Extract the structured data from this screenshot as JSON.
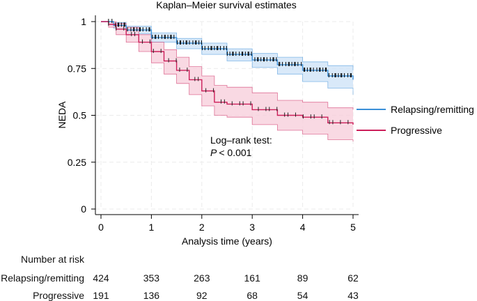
{
  "chart_data": {
    "type": "line",
    "title": "Kaplan–Meier survival estimates",
    "xlabel": "Analysis time (years)",
    "ylabel": "NEDA",
    "xlim": [
      0,
      5
    ],
    "ylim": [
      0,
      1
    ],
    "x_ticks": [
      "0",
      "1",
      "2",
      "3",
      "4",
      "5"
    ],
    "y_ticks": [
      "0",
      "0.25",
      "0.5",
      "0.75",
      "1"
    ],
    "grid": true,
    "legend_position": "right",
    "annotation": {
      "line1": "Log–rank test:",
      "p_label": "P",
      "p_value": "< 0.001"
    },
    "series": [
      {
        "name": "Relapsing/remitting",
        "color": "#3a8fd8",
        "band_color": "#cfe3f7",
        "x": [
          0,
          0.25,
          0.5,
          1,
          1.5,
          2,
          2.5,
          3,
          3.5,
          4,
          4.5,
          5
        ],
        "y": [
          1.0,
          0.98,
          0.955,
          0.915,
          0.885,
          0.855,
          0.825,
          0.795,
          0.77,
          0.74,
          0.71,
          0.69
        ],
        "lower": [
          1.0,
          0.965,
          0.935,
          0.89,
          0.855,
          0.825,
          0.79,
          0.755,
          0.72,
          0.68,
          0.645,
          0.61
        ],
        "upper": [
          1.0,
          0.995,
          0.975,
          0.94,
          0.91,
          0.885,
          0.855,
          0.83,
          0.81,
          0.785,
          0.765,
          0.74
        ]
      },
      {
        "name": "Progressive",
        "color": "#cc1f5a",
        "band_color": "#f7d0dc",
        "x": [
          0,
          0.15,
          0.3,
          0.5,
          0.75,
          1,
          1.25,
          1.5,
          1.75,
          2,
          2.25,
          2.5,
          3,
          3.5,
          4,
          4.5,
          5
        ],
        "y": [
          1.0,
          0.985,
          0.96,
          0.93,
          0.89,
          0.84,
          0.79,
          0.74,
          0.69,
          0.63,
          0.57,
          0.56,
          0.53,
          0.5,
          0.49,
          0.46,
          0.45
        ],
        "lower": [
          1.0,
          0.97,
          0.93,
          0.89,
          0.84,
          0.78,
          0.72,
          0.67,
          0.61,
          0.55,
          0.5,
          0.49,
          0.45,
          0.42,
          0.4,
          0.37,
          0.36
        ],
        "upper": [
          1.0,
          1.0,
          0.99,
          0.97,
          0.93,
          0.89,
          0.85,
          0.81,
          0.76,
          0.71,
          0.66,
          0.65,
          0.62,
          0.58,
          0.57,
          0.54,
          0.53
        ]
      }
    ]
  },
  "risk_table": {
    "header": "Number at risk",
    "times": [
      0,
      1,
      2,
      3,
      4,
      5
    ],
    "rows": [
      {
        "label": "Relapsing/remitting",
        "values": [
          "424",
          "353",
          "263",
          "161",
          "89",
          "62"
        ]
      },
      {
        "label": "Progressive",
        "values": [
          "191",
          "136",
          "92",
          "68",
          "54",
          "43"
        ]
      }
    ]
  }
}
